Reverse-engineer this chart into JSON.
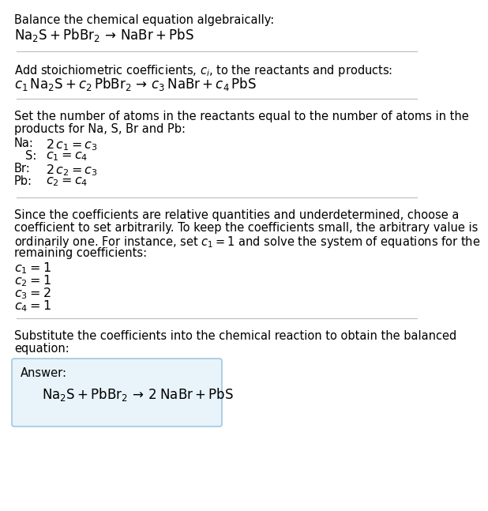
{
  "bg_color": "#ffffff",
  "text_color": "#000000",
  "sep_color": "#bbbbbb",
  "box_edge_color": "#a0c8e0",
  "box_face_color": "#e8f4fa",
  "font_size": 10.5,
  "sections": {
    "s1_title": "Balance the chemical equation algebraically:",
    "s1_eq": "$\\mathrm{Na_2S + PbBr_2}\\,\\rightarrow\\,\\mathrm{NaBr + PbS}$",
    "s2_intro": "Add stoichiometric coefficients, $c_i$, to the reactants and products:",
    "s2_eq": "$c_1\\,\\mathrm{Na_2S} + c_2\\,\\mathrm{PbBr_2}\\,\\rightarrow\\,c_3\\,\\mathrm{NaBr} + c_4\\,\\mathrm{PbS}$",
    "s3_intro1": "Set the number of atoms in the reactants equal to the number of atoms in the",
    "s3_intro2": "products for Na, S, Br and Pb:",
    "na_label": "Na:",
    "na_eq": "$2\\,c_1 = c_3$",
    "s_label": "  S:",
    "s_eq": "$c_1 = c_4$",
    "br_label": "Br:",
    "br_eq": "$2\\,c_2 = c_3$",
    "pb_label": "Pb:",
    "pb_eq": "$c_2 = c_4$",
    "s4_text1": "Since the coefficients are relative quantities and underdetermined, choose a",
    "s4_text2": "coefficient to set arbitrarily. To keep the coefficients small, the arbitrary value is",
    "s4_text3": "ordinarily one. For instance, set $c_1 = 1$ and solve the system of equations for the",
    "s4_text4": "remaining coefficients:",
    "c1": "$c_1 = 1$",
    "c2": "$c_2 = 1$",
    "c3": "$c_3 = 2$",
    "c4": "$c_4 = 1$",
    "s5_text1": "Substitute the coefficients into the chemical reaction to obtain the balanced",
    "s5_text2": "equation:",
    "answer_label": "Answer:",
    "answer_eq": "$\\mathrm{Na_2S + PbBr_2}\\,\\rightarrow\\,\\mathrm{2\\;NaBr + PbS}$"
  }
}
